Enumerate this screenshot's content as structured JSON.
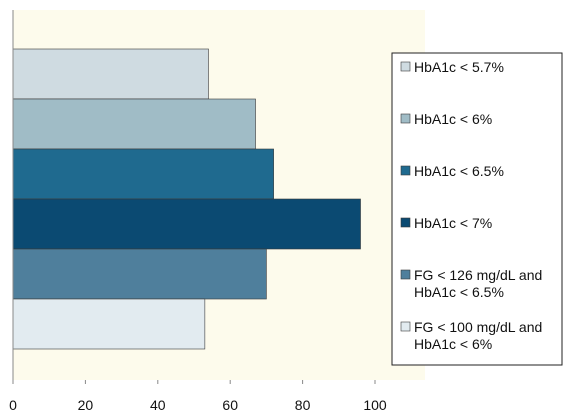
{
  "chart_data": {
    "type": "bar",
    "orientation": "horizontal",
    "title": "",
    "xlabel": "",
    "ylabel": "",
    "xlim": [
      0,
      100
    ],
    "xticks": [
      "0",
      "20",
      "40",
      "60",
      "80",
      "100"
    ],
    "grid": false,
    "legend_position": "right",
    "plot_background": "#fdfbec",
    "series": [
      {
        "name": "HbA1c < 5.7%",
        "lines": [
          "HbA1c < 5.7%"
        ],
        "value": 54,
        "color": "#cfdbe1"
      },
      {
        "name": "HbA1c < 6%",
        "lines": [
          "HbA1c < 6%"
        ],
        "value": 67,
        "color": "#a0bcc6"
      },
      {
        "name": "HbA1c < 6.5%",
        "lines": [
          "HbA1c < 6.5%"
        ],
        "value": 72,
        "color": "#1f6a8f"
      },
      {
        "name": "HbA1c < 7%",
        "lines": [
          "HbA1c < 7%"
        ],
        "value": 96,
        "color": "#0b4a72"
      },
      {
        "name": "FG < 126 mg/dL and HbA1c < 6.5%",
        "lines": [
          "FG < 126 mg/dL and",
          "HbA1c < 6.5%"
        ],
        "value": 70,
        "color": "#4f7f9c"
      },
      {
        "name": "FG < 100 mg/dL and HbA1c < 6%",
        "lines": [
          "FG < 100 mg/dL and",
          "HbA1c < 6%"
        ],
        "value": 53,
        "color": "#e2ebf0"
      }
    ]
  }
}
